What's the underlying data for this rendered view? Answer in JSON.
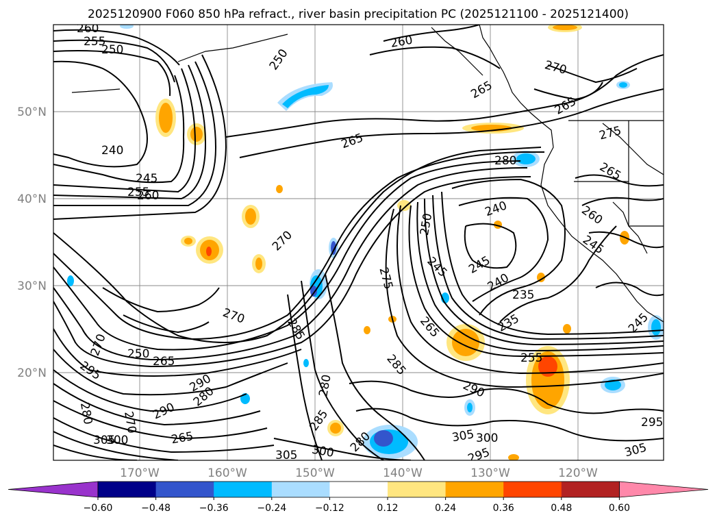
{
  "title": "2025120900 F060 850 hPa refract., river basin precipitation PC (2025121100 - 2025121400)",
  "lat_labels": [
    "50°N",
    "40°N",
    "30°N",
    "20°N"
  ],
  "lon_labels": [
    "170°W",
    "160°W",
    "150°W",
    "140°W",
    "130°W",
    "120°W"
  ],
  "contour_labels": [
    "260",
    "255",
    "250",
    "250",
    "260",
    "265",
    "270",
    "265",
    "240",
    "245",
    "255",
    "260",
    "265",
    "280",
    "275",
    "265",
    "240",
    "260",
    "245",
    "270",
    "250",
    "275",
    "245",
    "245",
    "240",
    "235",
    "235",
    "245",
    "270",
    "250",
    "265",
    "265",
    "255",
    "285",
    "270",
    "285",
    "290",
    "290",
    "280",
    "290",
    "280",
    "285",
    "280",
    "295",
    "270",
    "265",
    "280",
    "305",
    "300",
    "305",
    "300",
    "295",
    "300",
    "305",
    "295"
  ],
  "colorbar": {
    "tick_labels": [
      "−0.60",
      "−0.48",
      "−0.36",
      "−0.24",
      "−0.12",
      "0.12",
      "0.24",
      "0.36",
      "0.48",
      "0.60"
    ],
    "colors": [
      "#9933cc",
      "#000088",
      "#3355cc",
      "#00bbff",
      "#aaddff",
      "#ffffff",
      "#ffe680",
      "#ffa500",
      "#ff4500",
      "#b22222",
      "#ff88aa"
    ]
  },
  "fill_colors": {
    "pos_light": "#ffe680",
    "pos_mid": "#ffa500",
    "pos_high": "#ff4500",
    "neg_light": "#aaddff",
    "neg_mid": "#00bbff",
    "neg_high": "#3355cc"
  }
}
